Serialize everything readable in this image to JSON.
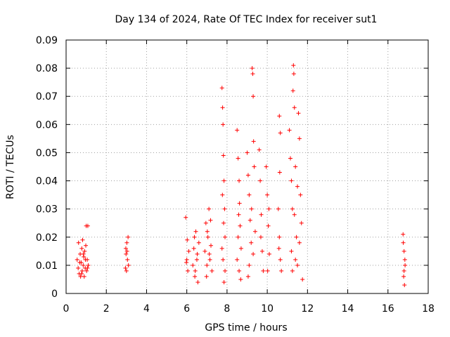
{
  "chart_data": {
    "type": "scatter",
    "title": "Day 134 of 2024, Rate Of TEC Index for receiver sut1",
    "xlabel": "GPS time / hours",
    "ylabel": "ROTI / TECUs",
    "xlim": [
      0,
      18
    ],
    "ylim": [
      0,
      0.09
    ],
    "xticks": [
      "0",
      "2",
      "4",
      "6",
      "8",
      "10",
      "12",
      "14",
      "16",
      "18"
    ],
    "yticks": [
      "0",
      "0.01",
      "0.02",
      "0.03",
      "0.04",
      "0.05",
      "0.06",
      "0.07",
      "0.08",
      "0.09"
    ],
    "grid": true,
    "marker": "+",
    "color": "#ff0000",
    "series": [
      {
        "name": "ROTI",
        "points": [
          [
            0.55,
            0.012
          ],
          [
            0.6,
            0.009
          ],
          [
            0.62,
            0.018
          ],
          [
            0.65,
            0.007
          ],
          [
            0.7,
            0.014
          ],
          [
            0.72,
            0.006
          ],
          [
            0.75,
            0.011
          ],
          [
            0.78,
            0.016
          ],
          [
            0.8,
            0.008
          ],
          [
            0.82,
            0.019
          ],
          [
            0.85,
            0.01
          ],
          [
            0.88,
            0.013
          ],
          [
            0.9,
            0.006
          ],
          [
            0.92,
            0.015
          ],
          [
            0.95,
            0.009
          ],
          [
            0.98,
            0.017
          ],
          [
            1.0,
            0.024
          ],
          [
            1.02,
            0.008
          ],
          [
            1.05,
            0.012
          ],
          [
            1.08,
            0.024
          ],
          [
            1.1,
            0.01
          ],
          [
            0.68,
            0.011
          ],
          [
            0.77,
            0.007
          ],
          [
            0.86,
            0.014
          ],
          [
            0.96,
            0.012
          ],
          [
            1.06,
            0.009
          ],
          [
            2.95,
            0.009
          ],
          [
            2.98,
            0.014
          ],
          [
            3.0,
            0.008
          ],
          [
            3.02,
            0.018
          ],
          [
            3.05,
            0.012
          ],
          [
            3.08,
            0.02
          ],
          [
            3.1,
            0.01
          ],
          [
            3.03,
            0.015
          ],
          [
            2.97,
            0.016
          ],
          [
            5.95,
            0.027
          ],
          [
            6.0,
            0.012
          ],
          [
            6.05,
            0.008
          ],
          [
            6.1,
            0.015
          ],
          [
            6.02,
            0.019
          ],
          [
            5.98,
            0.011
          ],
          [
            6.3,
            0.01
          ],
          [
            6.35,
            0.016
          ],
          [
            6.4,
            0.006
          ],
          [
            6.45,
            0.022
          ],
          [
            6.5,
            0.012
          ],
          [
            6.55,
            0.004
          ],
          [
            6.6,
            0.018
          ],
          [
            6.42,
            0.008
          ],
          [
            6.52,
            0.014
          ],
          [
            6.38,
            0.02
          ],
          [
            6.9,
            0.015
          ],
          [
            6.95,
            0.025
          ],
          [
            7.0,
            0.01
          ],
          [
            7.05,
            0.02
          ],
          [
            7.1,
            0.03
          ],
          [
            7.15,
            0.012
          ],
          [
            7.2,
            0.017
          ],
          [
            7.25,
            0.008
          ],
          [
            7.02,
            0.022
          ],
          [
            7.12,
            0.014
          ],
          [
            7.18,
            0.026
          ],
          [
            6.98,
            0.006
          ],
          [
            7.75,
            0.073
          ],
          [
            7.78,
            0.066
          ],
          [
            7.8,
            0.06
          ],
          [
            7.82,
            0.049
          ],
          [
            7.85,
            0.04
          ],
          [
            7.88,
            0.03
          ],
          [
            7.9,
            0.02
          ],
          [
            7.8,
            0.012
          ],
          [
            7.85,
            0.004
          ],
          [
            7.75,
            0.016
          ],
          [
            7.9,
            0.008
          ],
          [
            7.83,
            0.025
          ],
          [
            7.77,
            0.035
          ],
          [
            8.5,
            0.058
          ],
          [
            8.55,
            0.048
          ],
          [
            8.6,
            0.04
          ],
          [
            8.62,
            0.032
          ],
          [
            8.65,
            0.024
          ],
          [
            8.7,
            0.016
          ],
          [
            8.6,
            0.008
          ],
          [
            8.5,
            0.012
          ],
          [
            8.55,
            0.02
          ],
          [
            8.68,
            0.005
          ],
          [
            8.58,
            0.028
          ],
          [
            9.0,
            0.05
          ],
          [
            9.05,
            0.042
          ],
          [
            9.1,
            0.035
          ],
          [
            9.15,
            0.026
          ],
          [
            9.2,
            0.018
          ],
          [
            9.1,
            0.01
          ],
          [
            9.05,
            0.006
          ],
          [
            9.25,
            0.08
          ],
          [
            9.28,
            0.078
          ],
          [
            9.3,
            0.07
          ],
          [
            9.32,
            0.054
          ],
          [
            9.35,
            0.045
          ],
          [
            9.22,
            0.03
          ],
          [
            9.3,
            0.014
          ],
          [
            9.4,
            0.022
          ],
          [
            9.6,
            0.051
          ],
          [
            9.65,
            0.04
          ],
          [
            9.7,
            0.028
          ],
          [
            9.75,
            0.015
          ],
          [
            9.8,
            0.008
          ],
          [
            9.68,
            0.02
          ],
          [
            9.95,
            0.045
          ],
          [
            10.0,
            0.035
          ],
          [
            10.05,
            0.024
          ],
          [
            10.1,
            0.014
          ],
          [
            10.02,
            0.008
          ],
          [
            10.08,
            0.03
          ],
          [
            10.6,
            0.063
          ],
          [
            10.65,
            0.057
          ],
          [
            10.62,
            0.043
          ],
          [
            10.55,
            0.03
          ],
          [
            10.6,
            0.02
          ],
          [
            10.65,
            0.012
          ],
          [
            10.7,
            0.008
          ],
          [
            10.58,
            0.016
          ],
          [
            11.1,
            0.058
          ],
          [
            11.15,
            0.048
          ],
          [
            11.2,
            0.04
          ],
          [
            11.25,
            0.03
          ],
          [
            11.3,
            0.081
          ],
          [
            11.32,
            0.078
          ],
          [
            11.28,
            0.072
          ],
          [
            11.35,
            0.066
          ],
          [
            11.4,
            0.045
          ],
          [
            11.45,
            0.02
          ],
          [
            11.5,
            0.01
          ],
          [
            11.55,
            0.064
          ],
          [
            11.6,
            0.055
          ],
          [
            11.65,
            0.035
          ],
          [
            11.7,
            0.025
          ],
          [
            11.75,
            0.005
          ],
          [
            11.2,
            0.015
          ],
          [
            11.4,
            0.012
          ],
          [
            11.6,
            0.018
          ],
          [
            11.35,
            0.028
          ],
          [
            11.5,
            0.038
          ],
          [
            11.25,
            0.008
          ],
          [
            16.75,
            0.021
          ],
          [
            16.8,
            0.015
          ],
          [
            16.85,
            0.01
          ],
          [
            16.78,
            0.006
          ],
          [
            16.82,
            0.003
          ],
          [
            16.76,
            0.018
          ],
          [
            16.84,
            0.012
          ],
          [
            16.8,
            0.008
          ]
        ]
      }
    ]
  }
}
